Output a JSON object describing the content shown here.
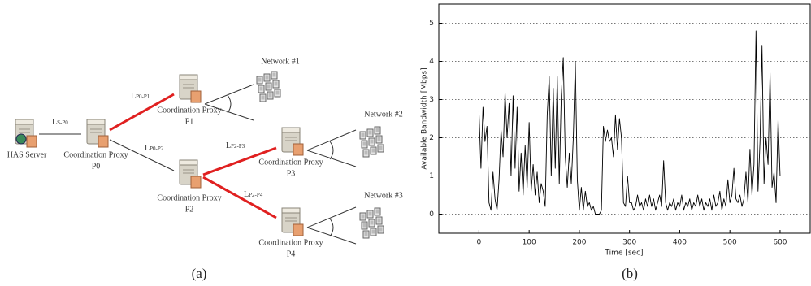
{
  "diagram": {
    "nodes": [
      {
        "label": "HAS Server"
      },
      {
        "label": "Coordination Proxy",
        "id": "P0"
      },
      {
        "label": "Coordination Proxy",
        "id": "P1"
      },
      {
        "label": "Coordination Proxy",
        "id": "P2"
      },
      {
        "label": "Coordination Proxy",
        "id": "P3"
      },
      {
        "label": "Coordination Proxy",
        "id": "P4"
      }
    ],
    "networks": [
      "Network #1",
      "Network #2",
      "Network #3"
    ],
    "links": [
      {
        "label": "L",
        "sub": "S-P0"
      },
      {
        "label": "L",
        "sub": "P0-P1"
      },
      {
        "label": "L",
        "sub": "P0-P2"
      },
      {
        "label": "L",
        "sub": "P2-P3"
      },
      {
        "label": "L",
        "sub": "P2-P4"
      }
    ]
  },
  "captions": [
    "(a)",
    "(b)"
  ],
  "chart_data": {
    "type": "line",
    "x_label": "Time [sec]",
    "y_label": "Available Bandwidth [Mbps]",
    "xlim": [
      -80,
      660
    ],
    "ylim": [
      -0.5,
      5.5
    ],
    "xticks": [
      0,
      100,
      200,
      300,
      400,
      500,
      600
    ],
    "yticks": [
      0,
      1,
      2,
      3,
      4,
      5
    ],
    "grid": true,
    "x": [
      0,
      4,
      8,
      12,
      16,
      20,
      24,
      28,
      32,
      36,
      40,
      44,
      48,
      52,
      56,
      60,
      64,
      68,
      72,
      76,
      80,
      84,
      88,
      92,
      96,
      100,
      104,
      108,
      112,
      116,
      120,
      124,
      128,
      132,
      136,
      140,
      144,
      148,
      152,
      156,
      160,
      164,
      168,
      172,
      176,
      180,
      184,
      188,
      192,
      196,
      200,
      204,
      208,
      212,
      216,
      220,
      224,
      228,
      232,
      236,
      240,
      244,
      248,
      252,
      256,
      260,
      264,
      268,
      272,
      276,
      280,
      284,
      288,
      292,
      296,
      300,
      304,
      308,
      312,
      316,
      320,
      324,
      328,
      332,
      336,
      340,
      344,
      348,
      352,
      356,
      360,
      364,
      368,
      372,
      376,
      380,
      384,
      388,
      392,
      396,
      400,
      404,
      408,
      412,
      416,
      420,
      424,
      428,
      432,
      436,
      440,
      444,
      448,
      452,
      456,
      460,
      464,
      468,
      472,
      476,
      480,
      484,
      488,
      492,
      496,
      500,
      504,
      508,
      512,
      516,
      520,
      524,
      528,
      532,
      536,
      540,
      544,
      548,
      552,
      556,
      560,
      564,
      568,
      572,
      576,
      580,
      584,
      588,
      592,
      596,
      600
    ],
    "series": [
      {
        "color": "#000000",
        "values": [
          2.7,
          1.2,
          2.8,
          1.9,
          2.3,
          0.3,
          0.1,
          1.1,
          0.4,
          0.1,
          0.9,
          2.2,
          1.5,
          3.2,
          2.0,
          2.9,
          1.0,
          3.1,
          1.2,
          2.8,
          0.6,
          1.6,
          0.5,
          1.8,
          0.7,
          2.4,
          0.6,
          1.3,
          0.5,
          1.1,
          0.3,
          0.8,
          0.6,
          0.2,
          2.6,
          3.6,
          1.0,
          3.3,
          1.2,
          3.6,
          0.8,
          3.1,
          4.1,
          1.5,
          0.7,
          1.6,
          0.8,
          2.0,
          4.0,
          0.9,
          0.1,
          0.7,
          0.1,
          0.6,
          0.2,
          0.3,
          0.1,
          0.2,
          0.0,
          0.0,
          0.0,
          0.1,
          2.3,
          1.9,
          2.2,
          1.9,
          2.0,
          1.5,
          2.6,
          1.7,
          2.5,
          2.0,
          0.3,
          0.2,
          1.0,
          0.3,
          0.3,
          0.1,
          0.2,
          0.5,
          0.2,
          0.3,
          0.1,
          0.4,
          0.2,
          0.5,
          0.2,
          0.4,
          0.1,
          0.3,
          0.5,
          0.2,
          1.4,
          0.3,
          0.1,
          0.3,
          0.2,
          0.4,
          0.1,
          0.3,
          0.2,
          0.5,
          0.1,
          0.3,
          0.2,
          0.4,
          0.1,
          0.3,
          0.2,
          0.5,
          0.2,
          0.4,
          0.1,
          0.3,
          0.2,
          0.4,
          0.1,
          0.5,
          0.2,
          0.3,
          0.6,
          0.1,
          0.4,
          0.2,
          0.9,
          0.3,
          0.5,
          1.2,
          0.4,
          0.3,
          0.5,
          0.2,
          0.4,
          1.1,
          0.3,
          1.7,
          0.5,
          1.3,
          4.8,
          0.6,
          1.9,
          4.4,
          0.8,
          2.0,
          1.3,
          3.7,
          0.7,
          1.1,
          0.3,
          2.5,
          1.0
        ]
      }
    ]
  }
}
